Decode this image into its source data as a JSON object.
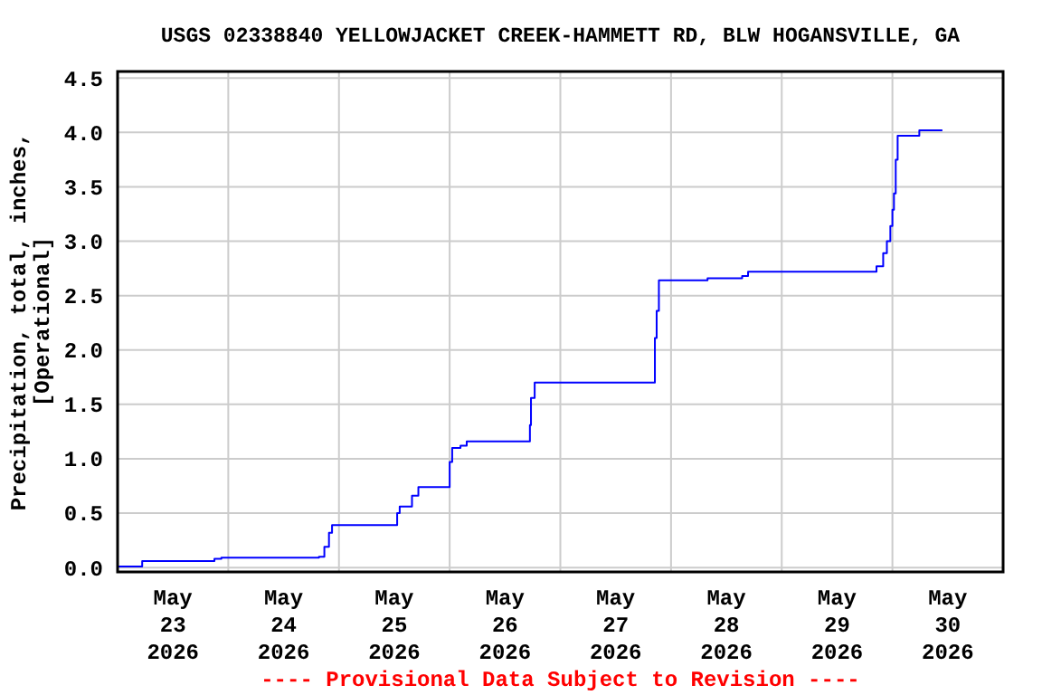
{
  "chart_data": {
    "type": "step",
    "title": "USGS 02338840 YELLOWJACKET CREEK-HAMMETT RD, BLW HOGANSVILLE, GA",
    "ylabel": "Precipitation, total, inches,\n[Operational]",
    "annotations": [
      "---- Provisional Data Subject to Revision ----"
    ],
    "series": [
      {
        "color": "#0000ff",
        "x": [
          "2026-05-23T00:00",
          "2026-05-23T05:20",
          "2026-05-23T21:00",
          "2026-05-23T22:30",
          "2026-05-24T19:40",
          "2026-05-24T20:50",
          "2026-05-24T21:50",
          "2026-05-24T22:30",
          "2026-05-25T12:37",
          "2026-05-25T13:10",
          "2026-05-25T15:50",
          "2026-05-25T17:13",
          "2026-05-26T00:00",
          "2026-05-26T00:33",
          "2026-05-26T02:21",
          "2026-05-26T03:42",
          "2026-05-26T17:24",
          "2026-05-26T17:38",
          "2026-05-26T18:26",
          "2026-05-27T20:30",
          "2026-05-27T20:53",
          "2026-05-27T21:22",
          "2026-05-28T07:55",
          "2026-05-28T15:25",
          "2026-05-28T16:42",
          "2026-05-29T20:33",
          "2026-05-29T22:00",
          "2026-05-29T22:48",
          "2026-05-29T23:33",
          "2026-05-30T00:00",
          "2026-05-30T00:20",
          "2026-05-30T00:43",
          "2026-05-30T01:08",
          "2026-05-30T05:50",
          "2026-05-30T10:50"
        ],
        "values": [
          0.01,
          0.06,
          0.08,
          0.09,
          0.1,
          0.19,
          0.32,
          0.39,
          0.5,
          0.56,
          0.66,
          0.74,
          0.97,
          1.1,
          1.12,
          1.16,
          1.31,
          1.56,
          1.7,
          2.11,
          2.36,
          2.64,
          2.66,
          2.68,
          2.72,
          2.77,
          2.89,
          3.0,
          3.14,
          3.29,
          3.44,
          3.75,
          3.97,
          4.02,
          4.02
        ]
      }
    ],
    "xlim": [
      "2026-05-23T00:00",
      "2026-05-31T00:00"
    ],
    "xticks": [
      {
        "value": "2026-05-23T12:00",
        "label": "May\n23\n2026"
      },
      {
        "value": "2026-05-24T12:00",
        "label": "May\n24\n2026"
      },
      {
        "value": "2026-05-25T12:00",
        "label": "May\n25\n2026"
      },
      {
        "value": "2026-05-26T12:00",
        "label": "May\n26\n2026"
      },
      {
        "value": "2026-05-27T12:00",
        "label": "May\n27\n2026"
      },
      {
        "value": "2026-05-28T12:00",
        "label": "May\n28\n2026"
      },
      {
        "value": "2026-05-29T12:00",
        "label": "May\n29\n2026"
      },
      {
        "value": "2026-05-30T12:00",
        "label": "May\n30\n2026"
      },
      {
        "value": "2026-05-24T00:00",
        "label": null
      },
      {
        "value": "2026-05-25T00:00",
        "label": null
      },
      {
        "value": "2026-05-26T00:00",
        "label": null
      },
      {
        "value": "2026-05-27T00:00",
        "label": null
      },
      {
        "value": "2026-05-28T00:00",
        "label": null
      },
      {
        "value": "2026-05-29T00:00",
        "label": null
      },
      {
        "value": "2026-05-30T00:00",
        "label": null
      }
    ],
    "ylim": [
      -0.04,
      4.56
    ],
    "yticks": [
      {
        "value": 0,
        "label": "0.0"
      },
      {
        "value": 0.5,
        "label": "0.5"
      },
      {
        "value": 1,
        "label": "1.0"
      },
      {
        "value": 1.5,
        "label": "1.5"
      },
      {
        "value": 2,
        "label": "2.0"
      },
      {
        "value": 2.5,
        "label": "2.5"
      },
      {
        "value": 3,
        "label": "3.0"
      },
      {
        "value": 3.5,
        "label": "3.5"
      },
      {
        "value": 4,
        "label": "4.0"
      },
      {
        "value": 4.5,
        "label": "4.5"
      }
    ],
    "grid": true
  }
}
